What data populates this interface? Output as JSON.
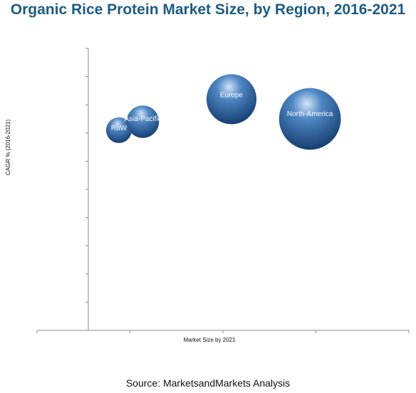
{
  "header": {
    "title": "Organic Rice Protein Market Size, by Region, 2016-2021"
  },
  "footer": {
    "source": "Source: MarketsandMarkets Analysis"
  },
  "chart_data": {
    "type": "bubble",
    "title": "Organic Rice Protein Market Size, by Region, 2016-2021",
    "xlabel": "Market Size by 2021",
    "ylabel": "CAGR % (2016-2021)",
    "x_tick_labels": [],
    "y_tick_labels": [],
    "grid": false,
    "legend": "none",
    "colors": {
      "bubble_light": "#cfe3f7",
      "bubble_mid": "#4f86c3",
      "bubble_dark": "#163f72"
    },
    "points": [
      {
        "label": "RoW",
        "x": 1.0,
        "y": 7.1,
        "size": 1.0
      },
      {
        "label": "Asia-Pacific",
        "x": 1.7,
        "y": 7.4,
        "size": 1.6
      },
      {
        "label": "Europe",
        "x": 4.3,
        "y": 8.2,
        "size": 3.8
      },
      {
        "label": "North-America",
        "x": 6.6,
        "y": 7.5,
        "size": 5.8
      }
    ],
    "xlim": [
      -1.4,
      9.5
    ],
    "ylim": [
      0,
      10
    ]
  }
}
